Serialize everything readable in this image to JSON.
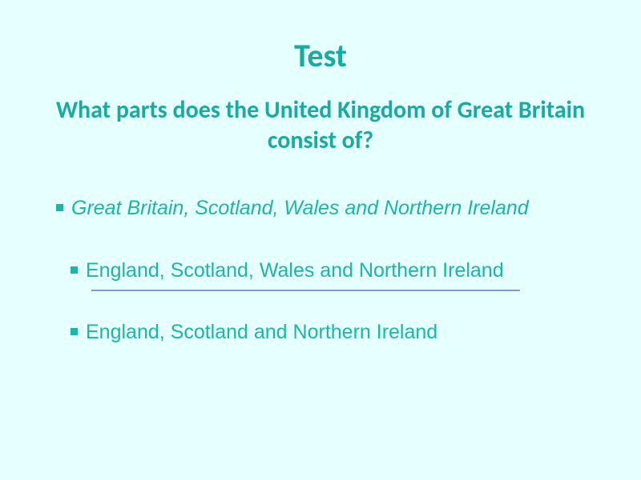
{
  "slide": {
    "background_color": "#e6ffff",
    "title": {
      "text": "Test",
      "color": "#1aaaa0",
      "fontsize": 40,
      "weight": "bold"
    },
    "question": {
      "text": "What parts does the United Kingdom of Great Britain consist of?",
      "color": "#1aaaa0",
      "fontsize": 30,
      "weight": "bold"
    },
    "options": [
      {
        "text": "Great Britain, Scotland, Wales and Northern Ireland",
        "italic": true,
        "underlined": false,
        "color": "#1cb5a8",
        "fontsize": 25,
        "bullet_color": "#1cb5a8"
      },
      {
        "text": "England, Scotland, Wales and Northern Ireland",
        "italic": false,
        "underlined": true,
        "underline_color": "#7d9cd1",
        "color": "#1cb5a8",
        "fontsize": 25,
        "bullet_color": "#1cb5a8"
      },
      {
        "text": "England, Scotland and Northern Ireland",
        "italic": false,
        "underlined": false,
        "color": "#1cb5a8",
        "fontsize": 25,
        "bullet_color": "#1cb5a8"
      }
    ]
  }
}
